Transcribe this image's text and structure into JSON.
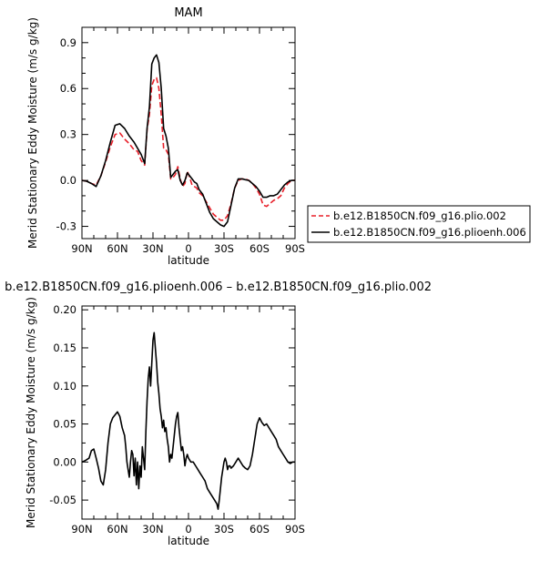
{
  "chart_data": [
    {
      "type": "line",
      "title": "MAM",
      "xlabel": "latitude",
      "ylabel": "Merid Stationary Eddy Moisture (m/s g/kg)",
      "xlim": [
        90,
        -90
      ],
      "ylim": [
        -0.38,
        1.0
      ],
      "xticks": [
        90,
        60,
        30,
        0,
        -30,
        -60,
        -90
      ],
      "xtick_labels": [
        "90N",
        "60N",
        "30N",
        "0",
        "30S",
        "60S",
        "90S"
      ],
      "yticks": [
        -0.3,
        0,
        0.3,
        0.6,
        0.9
      ],
      "ytick_labels": [
        "-0.3",
        "0.0",
        "0.3",
        "0.6",
        "0.9"
      ],
      "grid": false,
      "legend": {
        "placement": "right, outside plot"
      },
      "series": [
        {
          "name": "b.e12.B1850CN.f09_g16.plio.002",
          "color": "#e8202a",
          "dash": "dashed",
          "x": [
            90,
            86,
            82,
            78,
            74,
            70,
            66,
            62,
            58,
            54,
            50,
            46,
            43,
            40,
            37,
            35,
            33,
            31,
            29,
            27,
            25,
            23,
            21,
            19,
            17,
            15,
            13,
            11,
            9,
            7,
            5,
            3,
            1,
            -1,
            -3,
            -5,
            -7,
            -9,
            -12,
            -15,
            -18,
            -21,
            -24,
            -27,
            -30,
            -33,
            -36,
            -39,
            -42,
            -45,
            -48,
            -51,
            -54,
            -57,
            -60,
            -63,
            -66,
            -69,
            -72,
            -75,
            -78,
            -81,
            -84,
            -87,
            -90
          ],
          "y": [
            0.0,
            -0.005,
            -0.02,
            -0.03,
            0.03,
            0.12,
            0.22,
            0.3,
            0.31,
            0.27,
            0.24,
            0.2,
            0.19,
            0.13,
            0.1,
            0.33,
            0.43,
            0.62,
            0.66,
            0.67,
            0.6,
            0.43,
            0.21,
            0.2,
            0.17,
            0.01,
            0.02,
            0.04,
            0.09,
            0.01,
            -0.04,
            -0.02,
            0.06,
            0.02,
            -0.03,
            -0.04,
            -0.05,
            -0.08,
            -0.1,
            -0.14,
            -0.18,
            -0.22,
            -0.24,
            -0.26,
            -0.26,
            -0.23,
            -0.15,
            -0.05,
            0.0,
            0.01,
            0.01,
            0.0,
            -0.02,
            -0.05,
            -0.09,
            -0.16,
            -0.17,
            -0.15,
            -0.13,
            -0.12,
            -0.1,
            -0.05,
            -0.02,
            0.0,
            0.0
          ]
        },
        {
          "name": "b.e12.B1850CN.f09_g16.plioenh.006",
          "color": "#000000",
          "dash": "solid",
          "x": [
            90,
            86,
            82,
            78,
            74,
            70,
            66,
            62,
            58,
            54,
            50,
            46,
            43,
            40,
            37,
            35,
            33,
            31,
            29,
            27,
            25,
            23,
            21,
            19,
            17,
            15,
            13,
            11,
            9,
            7,
            5,
            3,
            1,
            -1,
            -3,
            -5,
            -7,
            -9,
            -12,
            -15,
            -18,
            -21,
            -24,
            -27,
            -30,
            -33,
            -36,
            -39,
            -42,
            -45,
            -48,
            -51,
            -54,
            -57,
            -60,
            -63,
            -66,
            -69,
            -72,
            -75,
            -78,
            -81,
            -84,
            -87,
            -90
          ],
          "y": [
            0.0,
            -0.005,
            -0.02,
            -0.04,
            0.03,
            0.13,
            0.25,
            0.36,
            0.37,
            0.34,
            0.29,
            0.25,
            0.21,
            0.17,
            0.11,
            0.34,
            0.48,
            0.76,
            0.8,
            0.82,
            0.77,
            0.6,
            0.34,
            0.29,
            0.21,
            0.02,
            0.04,
            0.06,
            0.07,
            0.0,
            -0.03,
            0.0,
            0.05,
            0.03,
            0.01,
            -0.01,
            -0.02,
            -0.06,
            -0.09,
            -0.15,
            -0.21,
            -0.25,
            -0.27,
            -0.29,
            -0.3,
            -0.27,
            -0.16,
            -0.05,
            0.01,
            0.01,
            0.005,
            0.0,
            -0.02,
            -0.04,
            -0.07,
            -0.11,
            -0.11,
            -0.1,
            -0.1,
            -0.09,
            -0.06,
            -0.03,
            -0.01,
            0.0,
            0.0
          ]
        }
      ]
    },
    {
      "type": "line",
      "title": "b.e12.B1850CN.f09_g16.plioenh.006 – b.e12.B1850CN.f09_g16.plio.002",
      "xlabel": "latitude",
      "ylabel": "Merid Stationary Eddy Moisture (m/s g/kg)",
      "xlim": [
        90,
        -90
      ],
      "ylim": [
        -0.075,
        0.205
      ],
      "xticks": [
        90,
        60,
        30,
        0,
        -30,
        -60,
        -90
      ],
      "xtick_labels": [
        "90N",
        "60N",
        "30N",
        "0",
        "30S",
        "60S",
        "90S"
      ],
      "yticks": [
        -0.05,
        0,
        0.05,
        0.1,
        0.15,
        0.2
      ],
      "ytick_labels": [
        "-0.05",
        "0.00",
        "0.05",
        "0.10",
        "0.15",
        "0.20"
      ],
      "grid": false,
      "series": [
        {
          "color": "#000000",
          "dash": "solid",
          "x": [
            90,
            87,
            84,
            82,
            80,
            78,
            76,
            74,
            72,
            70,
            68,
            66,
            64,
            62,
            60,
            58,
            56,
            54,
            53,
            52,
            51,
            50,
            49,
            48,
            47,
            46,
            45,
            44,
            43,
            42,
            41,
            40,
            39,
            38,
            37,
            36,
            35,
            34,
            33,
            32,
            31,
            30,
            29,
            28,
            27,
            26,
            25,
            24,
            23,
            22,
            21,
            20,
            19,
            18,
            17,
            16,
            15,
            14,
            13,
            12,
            11,
            10,
            9,
            8,
            7,
            6,
            5,
            4,
            3,
            2,
            1,
            0,
            -2,
            -4,
            -6,
            -8,
            -10,
            -12,
            -14,
            -16,
            -18,
            -20,
            -22,
            -24,
            -25,
            -26,
            -27,
            -28,
            -29,
            -30,
            -31,
            -32,
            -33,
            -34,
            -35,
            -36,
            -38,
            -40,
            -42,
            -44,
            -46,
            -48,
            -50,
            -52,
            -54,
            -56,
            -58,
            -60,
            -62,
            -64,
            -66,
            -68,
            -70,
            -72,
            -74,
            -76,
            -78,
            -80,
            -82,
            -84,
            -86,
            -88,
            -90
          ],
          "y": [
            0.0,
            0.002,
            0.005,
            0.015,
            0.017,
            0.005,
            -0.008,
            -0.025,
            -0.03,
            -0.01,
            0.025,
            0.05,
            0.058,
            0.062,
            0.066,
            0.06,
            0.045,
            0.035,
            0.02,
            0.0,
            -0.01,
            -0.02,
            0.0,
            0.015,
            0.01,
            -0.018,
            0.005,
            -0.03,
            0.0,
            -0.035,
            -0.005,
            -0.02,
            0.02,
            0.005,
            -0.01,
            0.04,
            0.08,
            0.11,
            0.125,
            0.1,
            0.13,
            0.16,
            0.17,
            0.15,
            0.13,
            0.105,
            0.09,
            0.07,
            0.06,
            0.045,
            0.055,
            0.04,
            0.045,
            0.03,
            0.02,
            0.0,
            0.01,
            0.005,
            0.02,
            0.035,
            0.05,
            0.06,
            0.065,
            0.045,
            0.03,
            0.015,
            0.02,
            0.01,
            -0.005,
            0.005,
            0.01,
            0.005,
            0.0,
            0.0,
            -0.005,
            -0.01,
            -0.015,
            -0.02,
            -0.025,
            -0.035,
            -0.04,
            -0.045,
            -0.05,
            -0.055,
            -0.062,
            -0.05,
            -0.035,
            -0.02,
            -0.01,
            0.0,
            0.005,
            0.0,
            -0.01,
            -0.005,
            -0.005,
            -0.008,
            -0.005,
            0.0,
            0.005,
            0.0,
            -0.005,
            -0.008,
            -0.01,
            -0.005,
            0.01,
            0.03,
            0.05,
            0.058,
            0.052,
            0.048,
            0.05,
            0.045,
            0.04,
            0.035,
            0.03,
            0.02,
            0.015,
            0.01,
            0.005,
            0.0,
            -0.002,
            0.0,
            0.0
          ]
        }
      ]
    }
  ]
}
